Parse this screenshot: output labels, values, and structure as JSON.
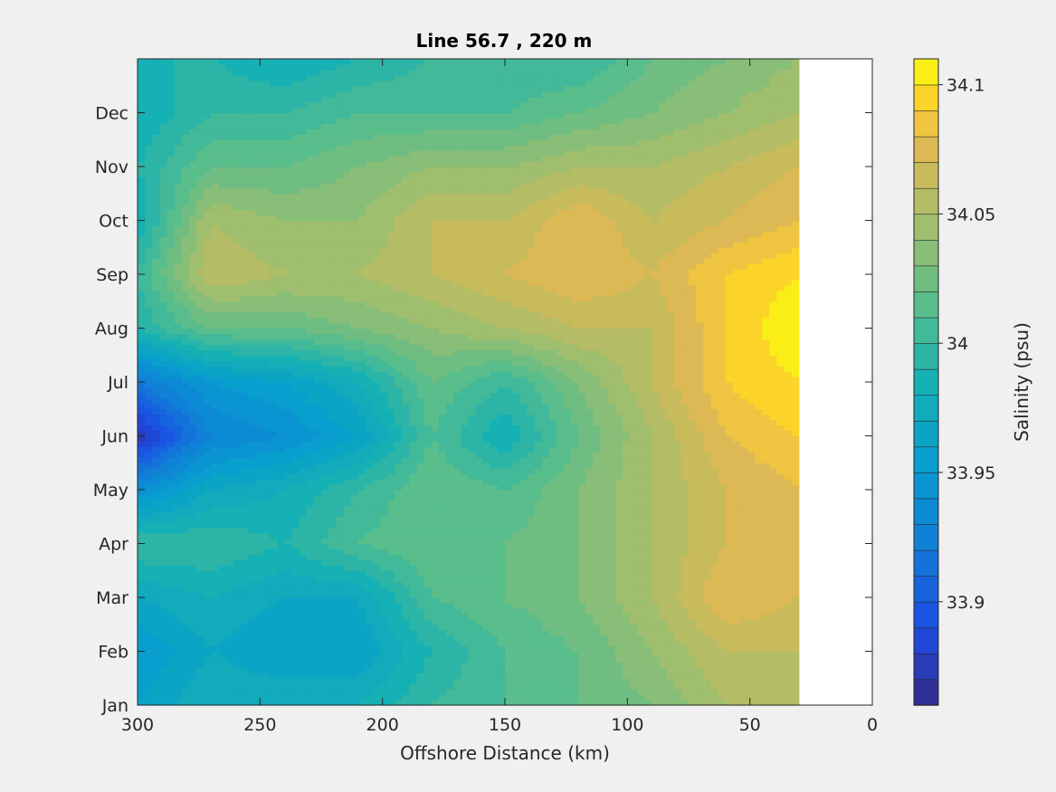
{
  "chart_data": {
    "type": "heatmap",
    "title": "Line 56.7 , 220 m",
    "xlabel": "Offshore Distance (km)",
    "ylabel": "",
    "xlim": [
      300,
      0
    ],
    "x_reversed": true,
    "x_ticks": [
      300,
      250,
      200,
      150,
      100,
      50,
      0
    ],
    "x_tick_labels": [
      "300",
      "250",
      "200",
      "150",
      "100",
      "50",
      "0"
    ],
    "y_tick_labels": [
      "Jan",
      "Feb",
      "Mar",
      "Apr",
      "May",
      "Jun",
      "Jul",
      "Aug",
      "Sep",
      "Oct",
      "Nov",
      "Dec"
    ],
    "data_x_range": [
      30,
      300
    ],
    "colorbar": {
      "label": "Salinity (psu)",
      "range": [
        33.86,
        34.11
      ],
      "ticks": [
        33.9,
        33.95,
        34.0,
        34.05,
        34.1
      ],
      "tick_labels": [
        "33.9",
        "33.95",
        "34",
        "34.05",
        "34.1"
      ],
      "levels": 25,
      "colormap": "parula"
    },
    "x": [
      300,
      270,
      240,
      210,
      180,
      150,
      120,
      90,
      60,
      30
    ],
    "y": [
      "Jan",
      "Feb",
      "Mar",
      "Apr",
      "May",
      "Jun",
      "Jul",
      "Aug",
      "Sep",
      "Oct",
      "Nov",
      "Dec",
      "Jan+"
    ],
    "z": [
      [
        33.96,
        33.98,
        33.98,
        33.98,
        34.0,
        34.01,
        34.02,
        34.03,
        34.05,
        34.05
      ],
      [
        33.95,
        33.97,
        33.96,
        33.96,
        33.99,
        34.01,
        34.02,
        34.04,
        34.06,
        34.06
      ],
      [
        33.97,
        33.98,
        33.97,
        33.97,
        34.01,
        34.02,
        34.03,
        34.05,
        34.08,
        34.07
      ],
      [
        34.0,
        34.0,
        33.99,
        34.01,
        34.02,
        34.02,
        34.03,
        34.05,
        34.07,
        34.07
      ],
      [
        33.94,
        33.97,
        33.98,
        34.0,
        34.02,
        34.01,
        34.03,
        34.05,
        34.07,
        34.08
      ],
      [
        33.87,
        33.93,
        33.94,
        33.96,
        34.01,
        33.98,
        34.02,
        34.05,
        34.08,
        34.09
      ],
      [
        33.92,
        33.95,
        33.96,
        33.98,
        34.02,
        34.0,
        34.03,
        34.06,
        34.09,
        34.1
      ],
      [
        33.99,
        34.02,
        34.02,
        34.03,
        34.04,
        34.05,
        34.06,
        34.06,
        34.09,
        34.11
      ],
      [
        34.0,
        34.06,
        34.05,
        34.05,
        34.06,
        34.07,
        34.08,
        34.07,
        34.09,
        34.1
      ],
      [
        33.98,
        34.05,
        34.04,
        34.04,
        34.06,
        34.06,
        34.08,
        34.06,
        34.07,
        34.08
      ],
      [
        33.99,
        34.02,
        34.02,
        34.03,
        34.04,
        34.04,
        34.05,
        34.05,
        34.06,
        34.07
      ],
      [
        33.98,
        34.0,
        34.0,
        34.01,
        34.01,
        34.01,
        34.02,
        34.03,
        34.04,
        34.05
      ],
      [
        33.99,
        33.99,
        33.98,
        33.99,
        34.0,
        34.0,
        34.0,
        34.02,
        34.03,
        34.04
      ]
    ]
  }
}
